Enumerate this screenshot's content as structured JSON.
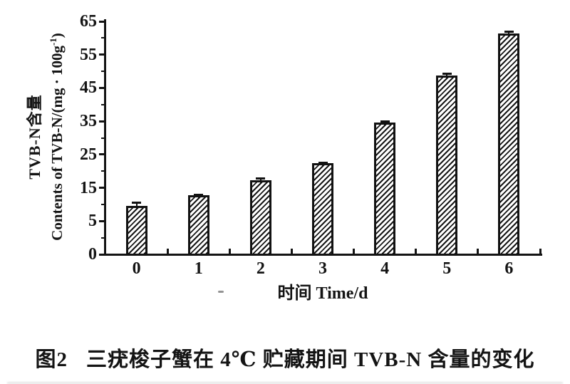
{
  "figure": {
    "caption_prefix": "图2",
    "caption_text": "三疣梭子蟹在 4℃ 贮藏期间 TVB-N 含量的变化"
  },
  "chart_data": {
    "type": "bar",
    "categories": [
      "0",
      "1",
      "2",
      "3",
      "4",
      "5",
      "6"
    ],
    "values": [
      9.6,
      12.7,
      17.3,
      22.3,
      34.5,
      48.8,
      61.3
    ],
    "errors": [
      0.9,
      0.2,
      0.5,
      0.3,
      0.5,
      0.4,
      0.5
    ],
    "xlabel": "时间 Time/d",
    "ylabel_line1": "TVB-N含量",
    "ylabel_line2_pre": "Contents of TVB-N/(mg · 100g",
    "ylabel_line2_sup": "-1",
    "ylabel_line2_post": ")",
    "y_ticks": [
      0,
      5,
      15,
      25,
      35,
      45,
      55,
      65
    ],
    "ylim": [
      0,
      65
    ],
    "grid": "off",
    "legend": "none",
    "bar_fill": "diagonal-hatch",
    "ink_color": "#141414",
    "background_color": "#ffffff"
  }
}
